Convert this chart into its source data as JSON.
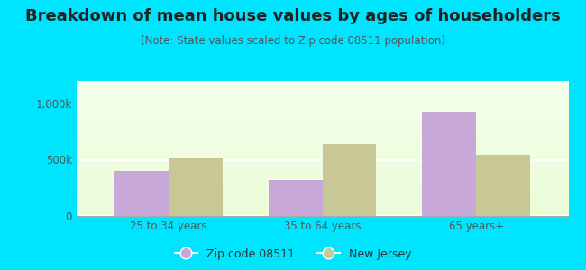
{
  "title": "Breakdown of mean house values by ages of householders",
  "subtitle": "(Note: State values scaled to Zip code 08511 population)",
  "categories": [
    "25 to 34 years",
    "35 to 64 years",
    "65 years+"
  ],
  "zip_values": [
    400000,
    320000,
    920000
  ],
  "nj_values": [
    510000,
    640000,
    545000
  ],
  "zip_color": "#c8a8d8",
  "nj_color": "#c8c896",
  "background_outer": "#00e5ff",
  "yticks": [
    0,
    500000,
    1000000
  ],
  "ytick_labels": [
    "0",
    "500k",
    "1,000k"
  ],
  "ylim": [
    0,
    1200000
  ],
  "xlim": [
    -0.6,
    2.6
  ],
  "bar_width": 0.35,
  "legend_zip_label": "Zip code 08511",
  "legend_nj_label": "New Jersey",
  "title_fontsize": 13,
  "subtitle_fontsize": 8.5,
  "tick_fontsize": 8.5,
  "legend_fontsize": 9
}
